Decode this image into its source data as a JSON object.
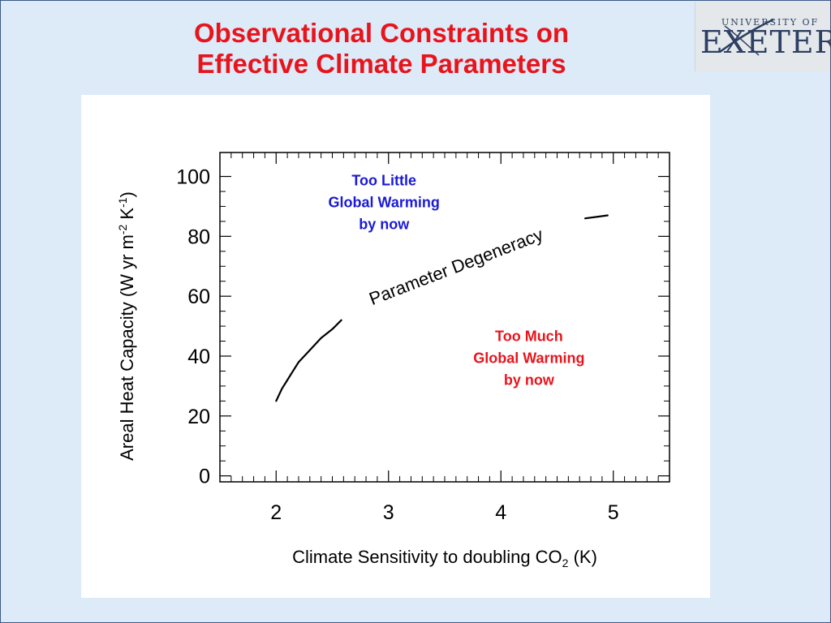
{
  "slide": {
    "title_line1": "Observational Constraints on",
    "title_line2": "Effective Climate Parameters"
  },
  "logo": {
    "top_text": "UNIVERSITY OF",
    "main_text": "EXETER"
  },
  "chart_data": {
    "type": "line",
    "xlabel": "Climate Sensitivity to doubling CO",
    "xlabel_sub": "2",
    "xlabel_suffix": " (K)",
    "ylabel_main": "Areal Heat Capacity (W yr m",
    "ylabel_sup1": "-2",
    "ylabel_mid": " K",
    "ylabel_sup2": "-1",
    "ylabel_end": ")",
    "xlim": [
      1.5,
      5.5
    ],
    "ylim": [
      -2,
      108
    ],
    "x_ticks": [
      2,
      3,
      4,
      5
    ],
    "y_ticks": [
      0,
      20,
      40,
      60,
      80,
      100
    ],
    "series": [
      {
        "x": [
          2.0,
          2.05,
          2.1,
          2.15,
          2.2,
          2.3,
          2.4,
          2.5,
          2.58
        ],
        "y": [
          25,
          29,
          32,
          35,
          38,
          42,
          46,
          49,
          52
        ]
      },
      {
        "x": [
          4.75,
          4.85,
          4.95
        ],
        "y": [
          86,
          86.5,
          87
        ]
      }
    ],
    "annotations": [
      {
        "id": "too-little",
        "lines": [
          "Too Little",
          "Global Warming",
          "by now"
        ],
        "color": "#1a1ad8",
        "x": 2.96,
        "y": 97
      },
      {
        "id": "too-much",
        "lines": [
          "Too Much",
          "Global Warming",
          "by now"
        ],
        "color": "#e8141c",
        "x": 4.25,
        "y": 45
      },
      {
        "id": "degeneracy",
        "lines": [
          "Parameter Degeneracy"
        ],
        "color": "#000000",
        "x": 3.62,
        "y": 68,
        "rotation": -21
      }
    ],
    "grid": false,
    "legend": "none"
  }
}
